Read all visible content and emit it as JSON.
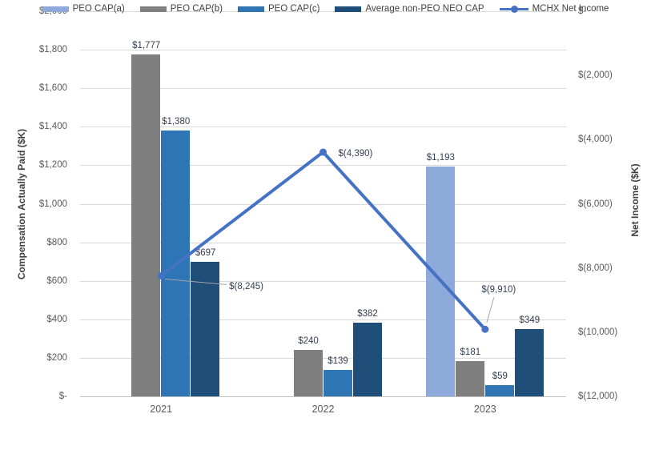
{
  "chart_data": {
    "type": "bar",
    "subtype": "grouped-bars-with-line-combo-dual-axis",
    "categories": [
      "2021",
      "2022",
      "2023"
    ],
    "bar_series": [
      {
        "name": "PEO CAP(a)",
        "color": "#8EAADB",
        "values": [
          null,
          null,
          1193
        ],
        "labels": [
          "",
          "",
          "$1,193"
        ]
      },
      {
        "name": "PEO CAP(b)",
        "color": "#7F7F7F",
        "values": [
          1777,
          240,
          181
        ],
        "labels": [
          "$1,777",
          "$240",
          "$181"
        ]
      },
      {
        "name": "PEO CAP(c)",
        "color": "#2E75B6",
        "values": [
          1380,
          139,
          59
        ],
        "labels": [
          "$1,380",
          "$139",
          "$59"
        ]
      },
      {
        "name": "Average non-PEO NEO CAP",
        "color": "#1F4E79",
        "values": [
          697,
          382,
          349
        ],
        "labels": [
          "$697",
          "$382",
          "$349"
        ]
      }
    ],
    "line_series": {
      "name": "MCHX Net Income",
      "color": "#4472C4",
      "values": [
        -8245,
        -4390,
        -9910
      ],
      "labels": [
        "$(8,245)",
        "$(4,390)",
        "$(9,910)"
      ]
    },
    "left_axis": {
      "title": "Compensation Actually Paid ($K)",
      "min": 0,
      "max": 2000,
      "step": 200,
      "tick_labels": [
        "$2,000",
        "$1,800",
        "$1,600",
        "$1,400",
        "$1,200",
        "$1,000",
        "$800",
        "$600",
        "$400",
        "$200",
        "$-"
      ]
    },
    "right_axis": {
      "title": "Net Income ($K)",
      "min": -12000,
      "max": 0,
      "step": 2000,
      "tick_labels": [
        "$-",
        "$(2,000)",
        "$(4,000)",
        "$(6,000)",
        "$(8,000)",
        "$(10,000)",
        "$(12,000)"
      ]
    },
    "legend": [
      {
        "label": "PEO CAP(a)",
        "marker": "swatch",
        "color": "#8EAADB"
      },
      {
        "label": "PEO CAP(b)",
        "marker": "swatch",
        "color": "#7F7F7F"
      },
      {
        "label": "PEO CAP(c)",
        "marker": "swatch",
        "color": "#2E75B6"
      },
      {
        "label": "Average non-PEO NEO CAP",
        "marker": "swatch",
        "color": "#1F4E79"
      },
      {
        "label": "MCHX Net Income",
        "marker": "line",
        "color": "#4472C4"
      }
    ],
    "grid": true,
    "legend_position": "bottom",
    "background": "#FFFFFF"
  }
}
